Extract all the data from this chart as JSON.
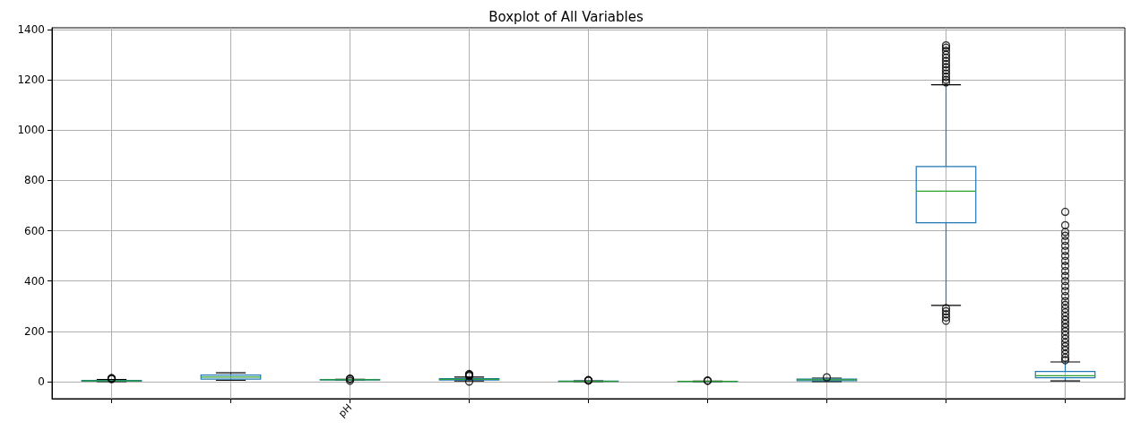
{
  "chart_data": {
    "type": "box",
    "title": "Boxplot of All Variables",
    "categories": [
      null,
      null,
      "pH",
      null,
      null,
      null,
      null,
      null,
      null
    ],
    "series": [
      {
        "color": "#1f77b4",
        "boxes": [
          {
            "low": 0,
            "q1": 2,
            "median": 3,
            "q3": 5,
            "high": 8,
            "outliers": [
              10,
              12,
              14
            ]
          },
          {
            "low": 5,
            "q1": 10,
            "median": 18,
            "q3": 26,
            "high": 35
          },
          {
            "low": 5,
            "q1": 6,
            "median": 7,
            "q3": 8,
            "high": 9,
            "outliers": [
              3,
              10,
              12
            ]
          },
          {
            "low": 3,
            "q1": 6,
            "median": 9,
            "q3": 12,
            "high": 18,
            "outliers": [
              0,
              22,
              25,
              28,
              30
            ]
          },
          {
            "low": 0,
            "q1": 0.5,
            "median": 1,
            "q3": 2,
            "high": 3,
            "outliers": [
              4,
              5,
              6
            ]
          },
          {
            "low": 0,
            "q1": 0.5,
            "median": 1,
            "q3": 1.5,
            "high": 2,
            "outliers": [
              3,
              4
            ]
          },
          {
            "low": 0,
            "q1": 4,
            "median": 7,
            "q3": 10,
            "high": 14,
            "outliers": [
              17
            ]
          },
          {
            "low": 303,
            "q1": 632,
            "median": 757,
            "q3": 855,
            "high": 1180,
            "outliers": [
              242,
              255,
              268,
              280,
              292,
              1190,
              1200,
              1212,
              1225,
              1238,
              1250,
              1262,
              1275,
              1288,
              1300,
              1315,
              1328,
              1337
            ]
          },
          {
            "low": 3,
            "q1": 15,
            "median": 23,
            "q3": 40,
            "high": 78,
            "outliers": [
              85,
              95,
              110,
              125,
              140,
              155,
              170,
              185,
              200,
              215,
              230,
              245,
              260,
              275,
              290,
              305,
              320,
              340,
              360,
              380,
              400,
              420,
              440,
              460,
              480,
              500,
              520,
              540,
              560,
              580,
              595,
              622,
              675
            ]
          }
        ]
      }
    ],
    "ylim": [
      -68,
      1407
    ],
    "yticks": [
      0,
      200,
      400,
      600,
      800,
      1000,
      1200,
      1400
    ],
    "grid": true
  }
}
